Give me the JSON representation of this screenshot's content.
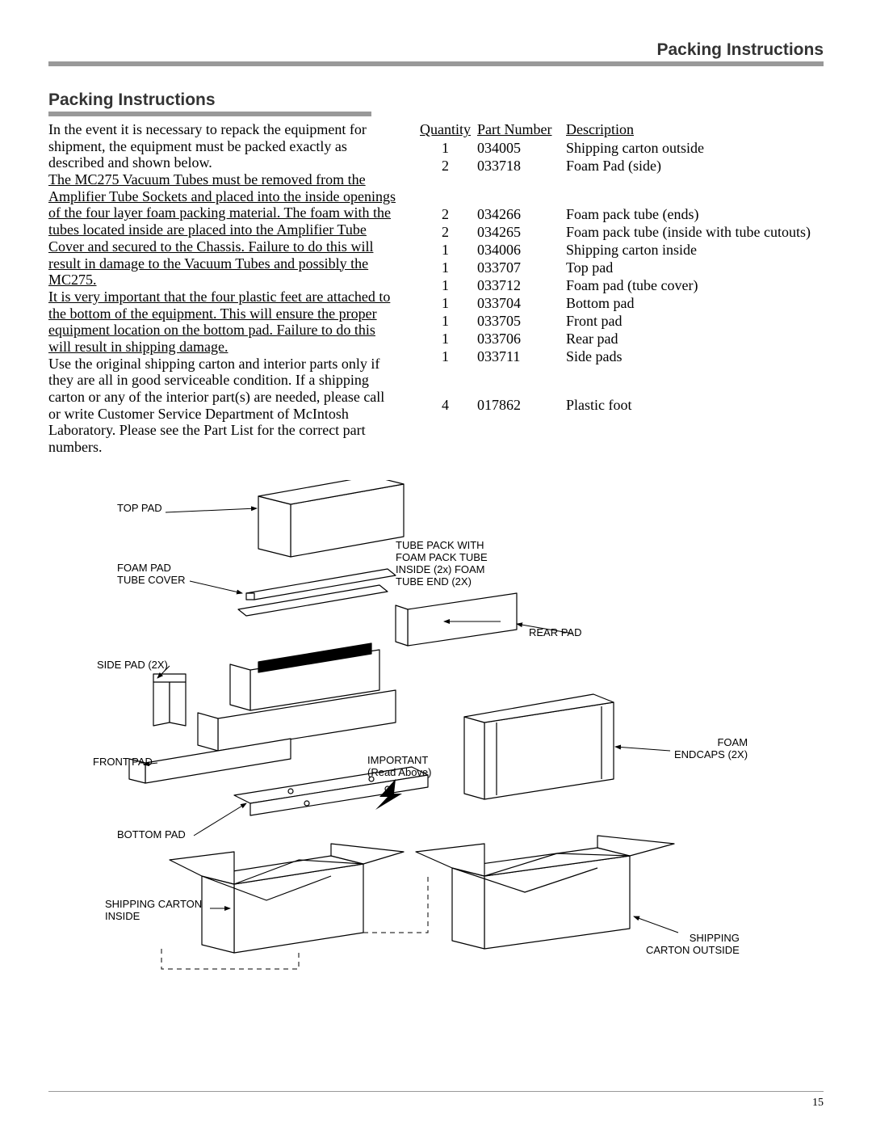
{
  "header": {
    "title": "Packing Instructions"
  },
  "section": {
    "title": "Packing Instructions"
  },
  "body": {
    "p1": "In the event it is necessary to repack the equipment for shipment, the equipment must be packed exactly as described and shown below.",
    "p2": "The MC275 Vacuum Tubes must be removed from the Amplifier Tube Sockets and placed into the inside openings of the four layer foam packing material. The foam with the tubes located inside are placed into the Amplifier Tube Cover and secured to the Chassis. Failure to do this will result in damage to the Vacuum Tubes and possibly the MC275.",
    "p3": "It is very important that the four plastic feet are attached to the bottom of the equipment. This will ensure the proper equipment location on the bottom pad. Failure to do this will result in shipping damage.",
    "p4": "  Use the original shipping carton and interior parts only if they are all in good serviceable condition. If a shipping carton or any of the interior part(s) are needed, please call or write Customer Service Department of McIntosh Laboratory. Please see the Part List for the correct part numbers."
  },
  "parts": {
    "headers": {
      "qty": "Quantity",
      "pn": "Part Number",
      "desc": "Description"
    },
    "rows": [
      {
        "qty": "1",
        "pn": "034005",
        "desc": "Shipping carton outside"
      },
      {
        "qty": "2",
        "pn": "033718",
        "desc": "Foam Pad (side)"
      },
      {
        "qty": "2",
        "pn": "034266",
        "desc": "Foam pack tube (ends)"
      },
      {
        "qty": "2",
        "pn": "034265",
        "desc": "Foam pack tube (inside with  tube cutouts)"
      },
      {
        "qty": "1",
        "pn": "034006",
        "desc": "Shipping carton inside"
      },
      {
        "qty": "1",
        "pn": "033707",
        "desc": "Top pad"
      },
      {
        "qty": "1",
        "pn": "033712",
        "desc": "Foam pad (tube cover)"
      },
      {
        "qty": "1",
        "pn": "033704",
        "desc": "Bottom pad"
      },
      {
        "qty": "1",
        "pn": "033705",
        "desc": "Front pad"
      },
      {
        "qty": "1",
        "pn": "033706",
        "desc": "Rear pad"
      },
      {
        "qty": "1",
        "pn": "033711",
        "desc": "Side pads"
      },
      {
        "qty": "4",
        "pn": "017862",
        "desc": "Plastic foot"
      }
    ]
  },
  "diagram": {
    "labels": {
      "top_pad": "TOP PAD",
      "foam_pad_tube_cover": "FOAM PAD\nTUBE COVER",
      "side_pad": "SIDE PAD (2X)",
      "front_pad": "FRONT PAD",
      "bottom_pad": "BOTTOM PAD",
      "shipping_carton_inside": "SHIPPING CARTON\nINSIDE",
      "tube_pack": "TUBE PACK WITH\nFOAM PACK TUBE\nINSIDE (2x) FOAM\nTUBE END (2X)",
      "rear_pad": "REAR PAD",
      "important": "IMPORTANT\n(Read Above)",
      "foam_endcaps": "FOAM\nENDCAPS (2X)",
      "shipping_carton_outside": "SHIPPING\nCARTON OUTSIDE"
    },
    "stroke": "#000000",
    "fill": "#ffffff",
    "line_width": 1.2
  },
  "page_number": "15"
}
